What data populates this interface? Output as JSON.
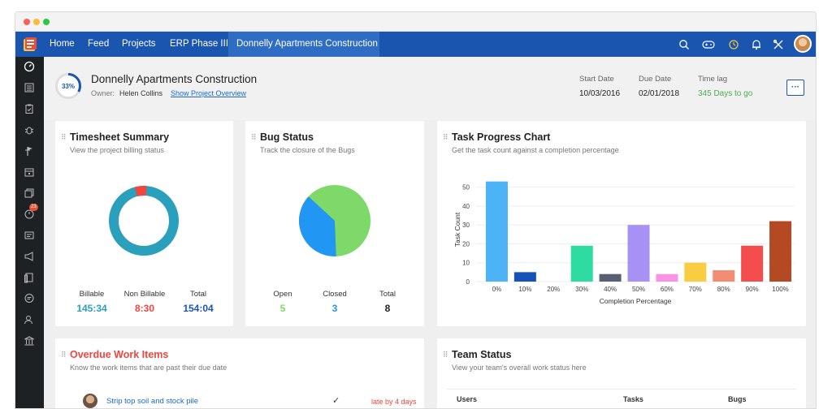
{
  "nav": {
    "items": [
      "Home",
      "Feed",
      "Projects",
      "ERP Phase III",
      "Donnelly Apartments Construction"
    ]
  },
  "sidebar": {
    "notification_count": "23"
  },
  "project": {
    "progress": "33%",
    "progress_fraction": 0.33,
    "name": "Donnelly Apartments Construction",
    "owner_label": "Owner:",
    "owner_name": "Helen Collins",
    "overview_link": "Show Project Overview",
    "start_label": "Start Date",
    "start_value": "10/03/2016",
    "due_label": "Due Date",
    "due_value": "02/01/2018",
    "lag_label": "Time lag",
    "lag_value": "345 Days to go",
    "more_label": "···"
  },
  "timesheet": {
    "title": "Timesheet Summary",
    "subtitle": "View the project billing status",
    "billable_label": "Billable",
    "billable_value": "145:34",
    "nonbillable_label": "Non Billable",
    "nonbillable_value": "8:30",
    "total_label": "Total",
    "total_value": "154:04"
  },
  "bugs": {
    "title": "Bug Status",
    "subtitle": "Track the closure of the Bugs",
    "open_label": "Open",
    "open_value": "5",
    "closed_label": "Closed",
    "closed_value": "3",
    "total_label": "Total",
    "total_value": "8"
  },
  "overdue": {
    "title": "Overdue Work Items",
    "subtitle": "Know the work items that are past their due date",
    "item_name": "Strip top soil and stock pile",
    "item_check": "✓",
    "item_status": "late by 4 days"
  },
  "team": {
    "title": "Team Status",
    "subtitle": "View your team's overall work status here",
    "col_users": "Users",
    "col_tasks": "Tasks",
    "col_bugs": "Bugs"
  },
  "colors": {
    "brand": "#1a55b0",
    "teal": "#2aa0bd",
    "red": "#f2453d",
    "green": "#7ed968",
    "blue": "#2196f3",
    "lag": "#4caf50"
  },
  "chart_data": {
    "type": "bar",
    "title": "Task Progress Chart",
    "subtitle": "Get the task count against a completion percentage",
    "xlabel": "Completion Percentage",
    "ylabel": "Task Count",
    "ylim": [
      0,
      55
    ],
    "yticks": [
      0,
      10,
      20,
      30,
      40,
      50
    ],
    "categories": [
      "0%",
      "10%",
      "20%",
      "30%",
      "40%",
      "50%",
      "60%",
      "70%",
      "80%",
      "90%",
      "100%"
    ],
    "values": [
      53,
      5,
      0,
      19,
      4,
      30,
      4,
      10,
      6,
      19,
      32
    ],
    "bar_colors": [
      "#4db3f7",
      "#1553b8",
      "#cccccc",
      "#2edba0",
      "#5b5f73",
      "#a891f5",
      "#f894e3",
      "#f9cd42",
      "#f28c72",
      "#f34d4d",
      "#b44a24"
    ]
  }
}
